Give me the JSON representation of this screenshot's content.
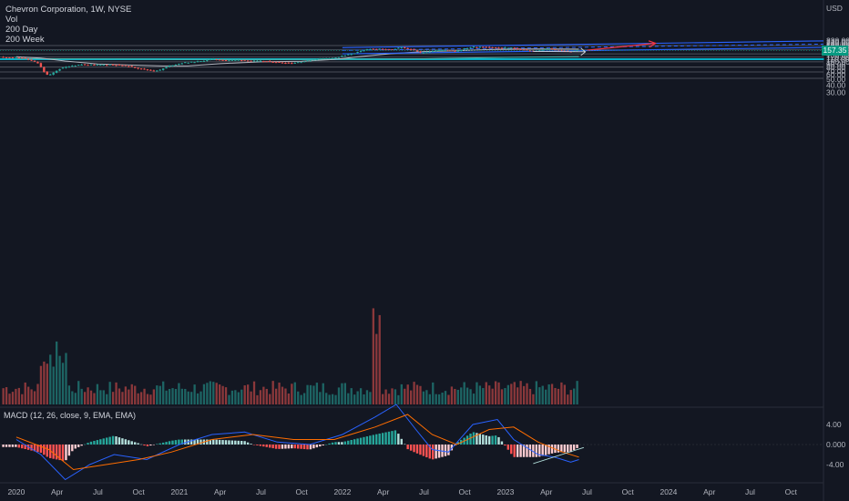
{
  "header": {
    "symbol_line": "Chevron Corporation, 1W, NYSE",
    "indicators": [
      "Vol",
      "200 Day",
      "200 Week"
    ]
  },
  "macd": {
    "label": "MACD (12, 26, close, 9, EMA, EMA)",
    "ticks": [
      "4.00",
      "0.000",
      "-4.00"
    ],
    "tick_values": [
      4,
      0,
      -4
    ]
  },
  "price_axis": {
    "currency": "USD",
    "ticks": [
      "230.00",
      "220.00",
      "210.00",
      "200.00",
      "190.00",
      "180.00",
      "170.00",
      "160.00",
      "150.00",
      "140.00",
      "130.00",
      "120.00",
      "110.00",
      "100.00",
      "90.00",
      "80.00",
      "70.00",
      "60.00",
      "50.00",
      "40.00",
      "30.00"
    ],
    "tick_values": [
      230,
      220,
      210,
      200,
      190,
      180,
      170,
      160,
      150,
      140,
      130,
      120,
      110,
      100,
      90,
      80,
      70,
      60,
      50,
      40,
      30
    ],
    "last_price": "157.35",
    "last_value": 157.35,
    "scale": "log"
  },
  "time_axis": {
    "labels": [
      "2020",
      "Apr",
      "Jul",
      "Oct",
      "2021",
      "Apr",
      "Jul",
      "Oct",
      "2022",
      "Apr",
      "Jul",
      "Oct",
      "2023",
      "Apr",
      "Jul",
      "Oct",
      "2024",
      "Apr",
      "Jul",
      "Oct"
    ],
    "label_dates": [
      "2020-01",
      "2020-04",
      "2020-07",
      "2020-10",
      "2021-01",
      "2021-04",
      "2021-07",
      "2021-10",
      "2022-01",
      "2022-04",
      "2022-07",
      "2022-10",
      "2023-01",
      "2023-04",
      "2023-07",
      "2023-10",
      "2024-01",
      "2024-04",
      "2024-07",
      "2024-10"
    ]
  },
  "colors": {
    "background": "#131722",
    "up": "#26a69a",
    "down": "#ef5350",
    "ma_200_day": "#b2b5be",
    "ma_200_week": "#4db6ac",
    "channel": "#2962ff",
    "projection_arrow": "#f23645",
    "support_zone": "#00bcd4",
    "macd_line": "#2962ff",
    "signal_line": "#ff6d00"
  },
  "chart_data": {
    "type": "candlestick",
    "title": "Chevron Corporation, 1W, NYSE",
    "x_unit": "year",
    "y_unit": "USD",
    "yscale": "log",
    "ylim": [
      25,
      235
    ],
    "close_path": [
      [
        2019.9,
        121
      ],
      [
        2020.05,
        118
      ],
      [
        2020.1,
        107
      ],
      [
        2020.15,
        95
      ],
      [
        2020.2,
        60
      ],
      [
        2020.23,
        60
      ],
      [
        2020.28,
        75
      ],
      [
        2020.35,
        85
      ],
      [
        2020.42,
        90
      ],
      [
        2020.5,
        88
      ],
      [
        2020.6,
        90
      ],
      [
        2020.7,
        85
      ],
      [
        2020.78,
        76
      ],
      [
        2020.85,
        71
      ],
      [
        2020.9,
        72
      ],
      [
        2020.96,
        86
      ],
      [
        2021.05,
        97
      ],
      [
        2021.15,
        102
      ],
      [
        2021.22,
        112
      ],
      [
        2021.3,
        106
      ],
      [
        2021.4,
        108
      ],
      [
        2021.45,
        104
      ],
      [
        2021.55,
        102
      ],
      [
        2021.65,
        97
      ],
      [
        2021.72,
        96
      ],
      [
        2021.8,
        104
      ],
      [
        2021.88,
        114
      ],
      [
        2021.98,
        118
      ],
      [
        2022.05,
        132
      ],
      [
        2022.13,
        150
      ],
      [
        2022.18,
        168
      ],
      [
        2022.25,
        165
      ],
      [
        2022.33,
        162
      ],
      [
        2022.38,
        177
      ],
      [
        2022.45,
        159
      ],
      [
        2022.5,
        142
      ],
      [
        2022.58,
        155
      ],
      [
        2022.65,
        160
      ],
      [
        2022.72,
        153
      ],
      [
        2022.77,
        168
      ],
      [
        2022.82,
        180
      ],
      [
        2022.88,
        182
      ],
      [
        2022.95,
        175
      ],
      [
        2023.0,
        173
      ],
      [
        2023.05,
        175
      ],
      [
        2023.1,
        164
      ],
      [
        2023.15,
        158
      ],
      [
        2023.2,
        151
      ],
      [
        2023.25,
        163
      ],
      [
        2023.28,
        168
      ],
      [
        2023.32,
        160
      ],
      [
        2023.37,
        154
      ],
      [
        2023.42,
        150
      ],
      [
        2023.45,
        157.35
      ]
    ],
    "volume_level": "weekly volume bars along the bottom band; largest spike in spring 2020 and a second spike in early 2022",
    "sma_200_day_path": [
      [
        2020.0,
        122
      ],
      [
        2020.15,
        116
      ],
      [
        2020.3,
        103
      ],
      [
        2020.5,
        92
      ],
      [
        2020.7,
        88
      ],
      [
        2020.9,
        85
      ],
      [
        2021.05,
        85
      ],
      [
        2021.25,
        93
      ],
      [
        2021.5,
        100
      ],
      [
        2021.75,
        102
      ],
      [
        2021.95,
        110
      ],
      [
        2022.1,
        122
      ],
      [
        2022.3,
        138
      ],
      [
        2022.5,
        150
      ],
      [
        2022.7,
        155
      ],
      [
        2022.9,
        162
      ],
      [
        2023.1,
        166
      ],
      [
        2023.3,
        166
      ],
      [
        2023.45,
        165
      ]
    ],
    "sma_200_week_path": [
      [
        2020.0,
        114
      ],
      [
        2020.5,
        112
      ],
      [
        2021.0,
        110
      ],
      [
        2021.5,
        110
      ],
      [
        2022.0,
        111
      ],
      [
        2022.5,
        113
      ],
      [
        2023.0,
        119
      ],
      [
        2023.45,
        123
      ]
    ],
    "horizontal_levels": [
      190,
      160,
      137,
      120,
      110,
      100,
      81,
      67,
      52
    ],
    "support_zone": [
      109,
      113
    ],
    "channel": {
      "upper": [
        [
          2022.0,
          175
        ],
        [
          2024.95,
          228
        ]
      ],
      "lower": [
        [
          2022.0,
          137
        ],
        [
          2024.95,
          176
        ]
      ],
      "middle_dashed": [
        [
          2022.0,
          157
        ],
        [
          2024.95,
          201
        ]
      ]
    },
    "projection_arrow": {
      "from": [
        2023.5,
        158
      ],
      "to": [
        2023.92,
        208
      ]
    },
    "macd_series": {
      "macd": [
        [
          2020.0,
          1
        ],
        [
          2020.15,
          -2
        ],
        [
          2020.3,
          -7
        ],
        [
          2020.45,
          -4
        ],
        [
          2020.6,
          -2
        ],
        [
          2020.8,
          -3
        ],
        [
          2021.0,
          0
        ],
        [
          2021.2,
          2
        ],
        [
          2021.4,
          2.5
        ],
        [
          2021.6,
          0.5
        ],
        [
          2021.8,
          0
        ],
        [
          2022.0,
          2
        ],
        [
          2022.2,
          5.5
        ],
        [
          2022.33,
          8
        ],
        [
          2022.45,
          3
        ],
        [
          2022.55,
          -1
        ],
        [
          2022.65,
          -1.5
        ],
        [
          2022.8,
          4
        ],
        [
          2022.95,
          5
        ],
        [
          2023.05,
          1
        ],
        [
          2023.2,
          -2
        ],
        [
          2023.3,
          -2.5
        ],
        [
          2023.4,
          -3.5
        ],
        [
          2023.45,
          -3
        ]
      ],
      "signal": [
        [
          2020.0,
          1.5
        ],
        [
          2020.2,
          -1
        ],
        [
          2020.35,
          -5
        ],
        [
          2020.55,
          -4
        ],
        [
          2020.75,
          -3
        ],
        [
          2020.95,
          -1.5
        ],
        [
          2021.2,
          1
        ],
        [
          2021.45,
          2
        ],
        [
          2021.7,
          1
        ],
        [
          2021.95,
          1
        ],
        [
          2022.2,
          3.5
        ],
        [
          2022.4,
          6
        ],
        [
          2022.55,
          2
        ],
        [
          2022.7,
          0
        ],
        [
          2022.9,
          3
        ],
        [
          2023.05,
          3.5
        ],
        [
          2023.2,
          0.5
        ],
        [
          2023.35,
          -1.5
        ],
        [
          2023.45,
          -2.5
        ]
      ]
    }
  }
}
